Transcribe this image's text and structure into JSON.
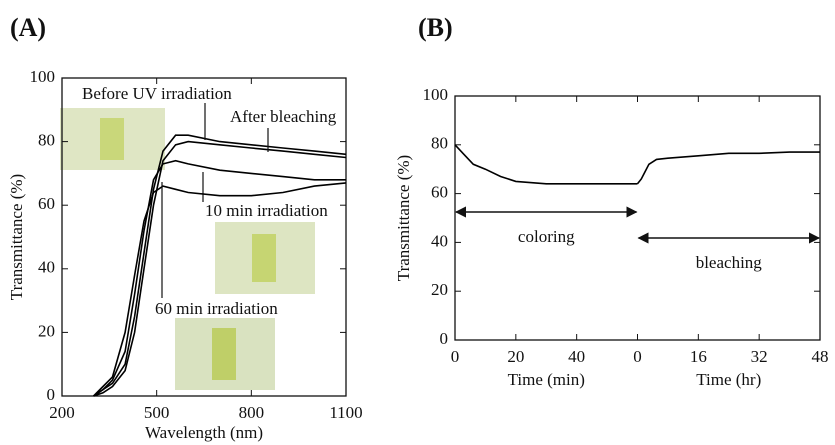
{
  "chart_data": [
    {
      "type": "line",
      "label": "(A)",
      "xlabel": "Wavelength (nm)",
      "ylabel": "Transmittance (%)",
      "xlim": [
        200,
        1100
      ],
      "xticks": [
        200,
        500,
        800,
        1100
      ],
      "ylim": [
        0,
        100
      ],
      "yticks": [
        0,
        20,
        40,
        60,
        80,
        100
      ],
      "x": [
        300,
        330,
        360,
        400,
        430,
        460,
        490,
        520,
        560,
        600,
        700,
        800,
        900,
        1000,
        1100
      ],
      "series": [
        {
          "name": "Before UV irradiation",
          "color": "#000000",
          "values": [
            0,
            2,
            4,
            10,
            25,
            45,
            65,
            77,
            82,
            82,
            80,
            79,
            78,
            77,
            76
          ]
        },
        {
          "name": "After bleaching",
          "color": "#000000",
          "values": [
            0,
            1,
            3,
            8,
            20,
            40,
            60,
            74,
            79,
            80,
            79,
            78,
            77,
            76,
            75
          ]
        },
        {
          "name": "10 min irradiation",
          "color": "#000000",
          "values": [
            0,
            2,
            5,
            14,
            32,
            52,
            68,
            73,
            74,
            73,
            71,
            70,
            69,
            68,
            68
          ]
        },
        {
          "name": "60 min irradiation",
          "color": "#000000",
          "values": [
            0,
            3,
            6,
            20,
            38,
            55,
            64,
            66,
            65,
            64,
            63,
            63,
            64,
            66,
            67
          ]
        }
      ]
    },
    {
      "type": "line",
      "label": "(B)",
      "xlabel": "Time (min)",
      "x2label": "Time (hr)",
      "ylabel": "Transmittance (%)",
      "xlim": [
        0,
        60
      ],
      "xticks": [
        0,
        20,
        40
      ],
      "x2lim": [
        0,
        48
      ],
      "x2ticks": [
        0,
        16,
        32,
        48
      ],
      "ylim": [
        0,
        100
      ],
      "yticks": [
        0,
        20,
        40,
        60,
        80,
        100
      ],
      "series": [
        {
          "name": "coloring",
          "color": "#000000",
          "x": [
            0,
            3,
            6,
            10,
            15,
            20,
            30,
            40,
            50,
            60
          ],
          "values": [
            80,
            76,
            72,
            70,
            67,
            65,
            64,
            64,
            64,
            64
          ]
        },
        {
          "name": "bleaching",
          "color": "#000000",
          "axis": "x2",
          "x": [
            0,
            1,
            2,
            3,
            5,
            8,
            16,
            24,
            32,
            40,
            48
          ],
          "values": [
            64,
            66,
            69,
            72,
            74,
            74.5,
            75.5,
            76.5,
            76.5,
            77,
            77
          ]
        }
      ]
    }
  ]
}
